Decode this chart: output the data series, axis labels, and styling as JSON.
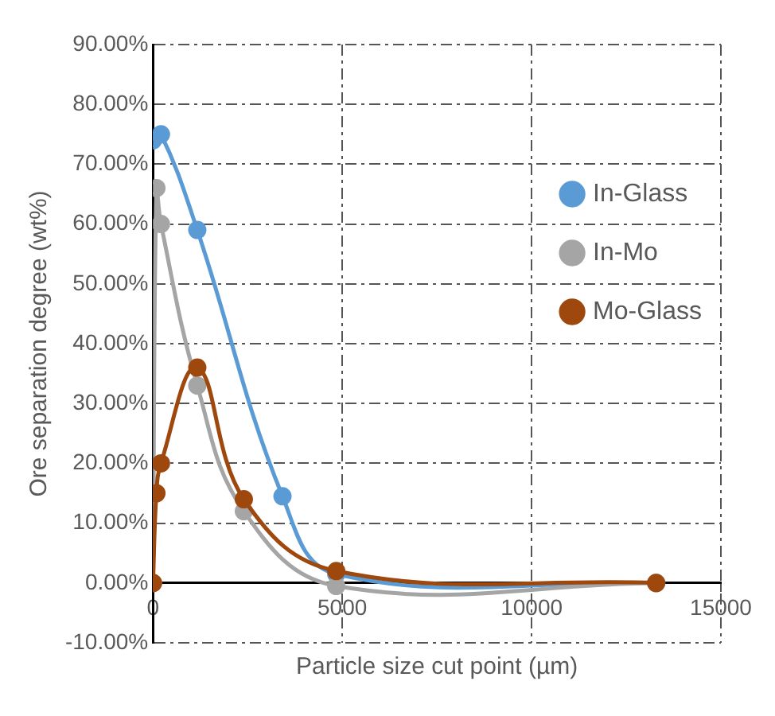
{
  "chart_data": {
    "type": "line",
    "xlabel": "Particle size cut point (µm)",
    "ylabel": "Ore separation degree (wt%)",
    "xlim": [
      0,
      15000
    ],
    "xticks": [
      0,
      5000,
      10000,
      15000
    ],
    "ylim": [
      -10,
      90
    ],
    "yticks": [
      {
        "value": -10,
        "label": "-10.00%"
      },
      {
        "value": 0,
        "label": "0.00%"
      },
      {
        "value": 10,
        "label": "10.00%"
      },
      {
        "value": 20,
        "label": "20.00%"
      },
      {
        "value": 30,
        "label": "30.00%"
      },
      {
        "value": 40,
        "label": "40.00%"
      },
      {
        "value": 50,
        "label": "50.00%"
      },
      {
        "value": 60,
        "label": "60.00%"
      },
      {
        "value": 70,
        "label": "70.00%"
      },
      {
        "value": 80,
        "label": "80.00%"
      },
      {
        "value": 90,
        "label": "90.00%"
      }
    ],
    "grid": true,
    "legend": "top right",
    "marker": "circle",
    "line_style": "solid",
    "series": [
      {
        "name": "In-Glass",
        "color": "#5b9bd5",
        "x": [
          0,
          210,
          1170,
          3420,
          4840,
          13290
        ],
        "values": [
          74,
          75,
          59,
          14.5,
          1.5,
          0
        ]
      },
      {
        "name": "In-Mo",
        "color": "#a5a5a5",
        "x": [
          0,
          90,
          210,
          1170,
          2400,
          4840,
          13290
        ],
        "values": [
          0,
          66,
          60,
          33,
          12,
          -0.5,
          0
        ]
      },
      {
        "name": "Mo-Glass",
        "color": "#9e480e",
        "x": [
          0,
          90,
          210,
          1170,
          2400,
          4840,
          13290
        ],
        "values": [
          0,
          15,
          20,
          36,
          14,
          2,
          0
        ]
      }
    ]
  }
}
